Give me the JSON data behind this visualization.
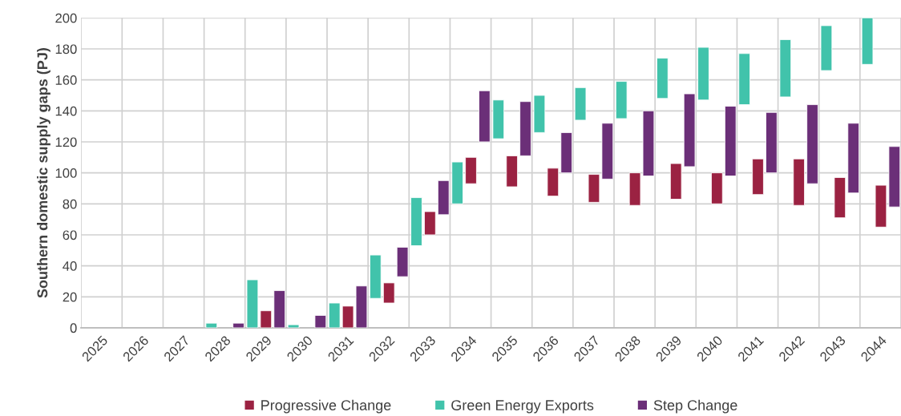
{
  "chart_data": {
    "type": "bar",
    "ylabel": "Southern domestic supply gaps (PJ)",
    "categories": [
      "2025",
      "2026",
      "2027",
      "2028",
      "2029",
      "2030",
      "2031",
      "2032",
      "2033",
      "2034",
      "2035",
      "2036",
      "2037",
      "2038",
      "2039",
      "2040",
      "2041",
      "2042",
      "2043",
      "2044"
    ],
    "series": [
      {
        "name": "Progressive Change",
        "color": "#9b2242",
        "base": [
          null,
          null,
          null,
          null,
          0,
          null,
          0,
          16,
          60,
          93,
          91,
          85,
          81,
          79,
          83,
          80,
          86,
          79,
          71,
          65
        ],
        "values": [
          null,
          null,
          null,
          null,
          11,
          null,
          14,
          13,
          15,
          17,
          20,
          18,
          18,
          21,
          23,
          20,
          23,
          30,
          26,
          27
        ]
      },
      {
        "name": "Green Energy Exports",
        "color": "#41c3ab",
        "base": [
          null,
          null,
          null,
          0,
          0,
          0,
          0,
          19,
          53,
          80,
          122,
          126,
          134,
          135,
          148,
          147,
          144,
          149,
          166,
          170
        ],
        "values": [
          null,
          null,
          null,
          3,
          31,
          2,
          16,
          28,
          31,
          27,
          25,
          24,
          21,
          24,
          26,
          34,
          33,
          37,
          29,
          30
        ]
      },
      {
        "name": "Step Change",
        "color": "#6b2f78",
        "base": [
          null,
          null,
          null,
          0,
          0,
          0,
          0,
          33,
          73,
          120,
          111,
          100,
          96,
          98,
          104,
          98,
          100,
          93,
          87,
          78
        ],
        "values": [
          null,
          null,
          null,
          3,
          24,
          8,
          27,
          19,
          22,
          33,
          35,
          26,
          36,
          42,
          47,
          45,
          39,
          51,
          45,
          39
        ]
      }
    ],
    "ylim": [
      0,
      200
    ],
    "yticks": [
      0,
      20,
      40,
      60,
      80,
      100,
      120,
      140,
      160,
      180,
      200
    ],
    "grid": true,
    "legend": "bottom"
  }
}
